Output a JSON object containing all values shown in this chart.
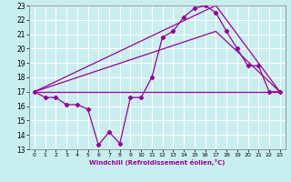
{
  "xlabel": "Windchill (Refroidissement éolien,°C)",
  "xlim": [
    -0.5,
    23.5
  ],
  "ylim": [
    13,
    23
  ],
  "yticks": [
    13,
    14,
    15,
    16,
    17,
    18,
    19,
    20,
    21,
    22,
    23
  ],
  "xticks": [
    0,
    1,
    2,
    3,
    4,
    5,
    6,
    7,
    8,
    9,
    10,
    11,
    12,
    13,
    14,
    15,
    16,
    17,
    18,
    19,
    20,
    21,
    22,
    23
  ],
  "background_color": "#c8eef0",
  "grid_color": "#ffffff",
  "line_color": "#990099",
  "curve1_x": [
    0,
    1,
    2,
    3,
    4,
    5,
    6,
    7,
    8,
    9,
    10,
    11,
    12,
    13,
    14,
    15,
    16,
    17,
    18,
    19,
    20,
    21,
    22,
    23
  ],
  "curve1_y": [
    17.0,
    16.6,
    16.6,
    16.1,
    16.1,
    15.8,
    13.3,
    14.2,
    13.4,
    16.6,
    16.6,
    18.0,
    20.8,
    21.2,
    22.2,
    22.8,
    23.0,
    22.5,
    21.2,
    20.0,
    18.8,
    18.8,
    17.0,
    17.0
  ],
  "curve2_x": [
    0,
    23
  ],
  "curve2_y": [
    17.0,
    17.0
  ],
  "curve3_x": [
    0,
    17,
    23
  ],
  "curve3_y": [
    17.0,
    23.0,
    17.0
  ],
  "curve4_x": [
    0,
    17,
    23
  ],
  "curve4_y": [
    17.0,
    21.2,
    17.0
  ]
}
